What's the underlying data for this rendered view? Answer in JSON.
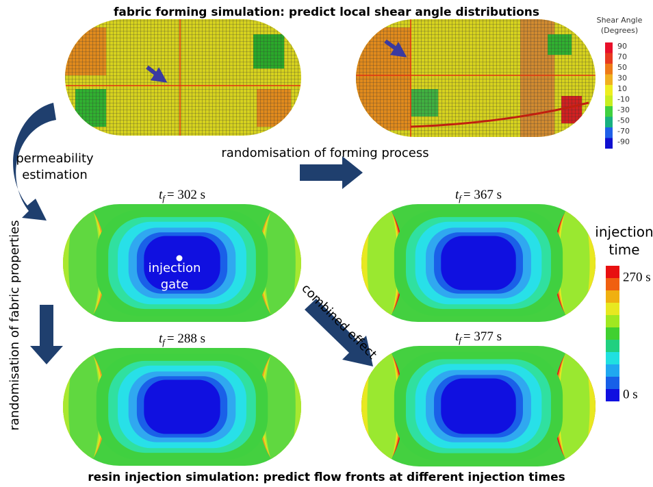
{
  "title": "fabric forming simulation: predict local shear angle distributions",
  "shear_legend": {
    "title": [
      "Shear Angle",
      "(Degrees)"
    ],
    "labels": [
      90,
      70,
      50,
      30,
      10,
      -10,
      -30,
      -50,
      -70,
      -90
    ]
  },
  "arrows": {
    "permeability": [
      "permeability",
      "estimation"
    ],
    "forming": "randomisation of forming process",
    "fabric": "randomisation of fabric properties",
    "combined": "combined effect"
  },
  "time_symbol": "t",
  "time_subscript": "f",
  "panels": [
    {
      "time": "= 302 s"
    },
    {
      "time": "= 367 s"
    },
    {
      "time": "= 288 s"
    },
    {
      "time": "= 377 s"
    }
  ],
  "gate_label": [
    "injection",
    "gate"
  ],
  "injection_legend": {
    "title": [
      "injection",
      "time"
    ],
    "max": "270 s",
    "min": "0 s"
  },
  "footer": "resin injection simulation: predict flow fronts at different injection times"
}
